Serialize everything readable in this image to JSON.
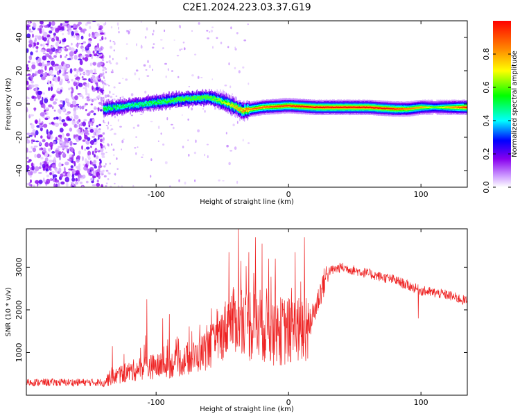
{
  "figure": {
    "title": "C2E1.2024.223.03.37.G19"
  },
  "chart_data": [
    {
      "type": "heatmap",
      "xlabel": "Height of straight line (km)",
      "ylabel": "Frequency (Hz)",
      "xlim": [
        -198,
        135
      ],
      "ylim": [
        -50,
        50
      ],
      "x_ticks": [
        -100,
        0,
        100
      ],
      "y_ticks": [
        -40,
        -20,
        0,
        20,
        40
      ],
      "x_tick_labels": [
        "-100",
        "0",
        "100"
      ],
      "y_tick_labels": [
        "-40",
        "-20",
        "0",
        "20",
        "40"
      ],
      "colorbar": {
        "label": "Normalized spectral amplitude",
        "range": [
          0,
          1
        ],
        "ticks": [
          0.0,
          0.2,
          0.4,
          0.6,
          0.8
        ],
        "tick_labels": [
          "0.0",
          "0.2",
          "0.4",
          "0.6",
          "0.8"
        ],
        "colors": [
          "#ffffff",
          "#cc99ff",
          "#8800ee",
          "#0000ff",
          "#00ffff",
          "#00ff00",
          "#ffff00",
          "#ff8800",
          "#ff0000"
        ]
      },
      "ridge": {
        "description_points_x": [
          -140,
          -120,
          -100,
          -80,
          -60,
          -45,
          -35,
          -20,
          0,
          20,
          60,
          80,
          90,
          100,
          110,
          135
        ],
        "description_points_y": [
          -3,
          -1,
          1,
          3,
          4,
          0,
          -4,
          -2,
          -1,
          -2,
          -2,
          -3,
          -3,
          -2,
          -2,
          -2
        ],
        "peak_amplitude": [
          0.55,
          0.5,
          0.55,
          0.6,
          0.6,
          0.7,
          0.85,
          0.9,
          0.95,
          1.0,
          1.0,
          0.95,
          0.85,
          0.8,
          0.6,
          1.0
        ]
      },
      "noise_region_x": [
        -198,
        -140
      ]
    },
    {
      "type": "line",
      "xlabel": "Height of straight line (km)",
      "ylabel": "SNR (10 * v/v)",
      "xlim": [
        -198,
        135
      ],
      "ylim": [
        0,
        3900
      ],
      "x_ticks": [
        -100,
        0,
        100
      ],
      "y_ticks": [
        1000,
        2000,
        3000
      ],
      "x_tick_labels": [
        "-100",
        "0",
        "100"
      ],
      "y_tick_labels": [
        "1000",
        "2000",
        "3000"
      ],
      "color": "#ee2222",
      "envelope_x": [
        -198,
        -140,
        -135,
        -110,
        -90,
        -70,
        -55,
        -45,
        -38,
        -30,
        -20,
        -10,
        0,
        10,
        15,
        20,
        25,
        30,
        40,
        60,
        80,
        100,
        120,
        135
      ],
      "envelope_y": [
        300,
        300,
        400,
        650,
        700,
        900,
        1200,
        1700,
        1800,
        1700,
        1700,
        1500,
        1500,
        1500,
        1600,
        2000,
        2500,
        2900,
        3000,
        2850,
        2700,
        2450,
        2350,
        2200
      ],
      "spikes": [
        {
          "x": -133,
          "y": 1150
        },
        {
          "x": -108,
          "y": 1400
        },
        {
          "x": -107,
          "y": 2250
        },
        {
          "x": -95,
          "y": 1800
        },
        {
          "x": -90,
          "y": 1900
        },
        {
          "x": -73,
          "y": 1500
        },
        {
          "x": -67,
          "y": 1650
        },
        {
          "x": -59,
          "y": 1650
        },
        {
          "x": -45,
          "y": 3350
        },
        {
          "x": -38,
          "y": 3900
        },
        {
          "x": -36,
          "y": 3150
        },
        {
          "x": -30,
          "y": 3350
        },
        {
          "x": -25,
          "y": 3700
        },
        {
          "x": -20,
          "y": 3550
        },
        {
          "x": -15,
          "y": 3200
        },
        {
          "x": -10,
          "y": 3200
        },
        {
          "x": 5,
          "y": 3350
        },
        {
          "x": 12,
          "y": 3700
        },
        {
          "x": 13,
          "y": 800
        },
        {
          "x": 98,
          "y": 1800
        }
      ]
    }
  ]
}
